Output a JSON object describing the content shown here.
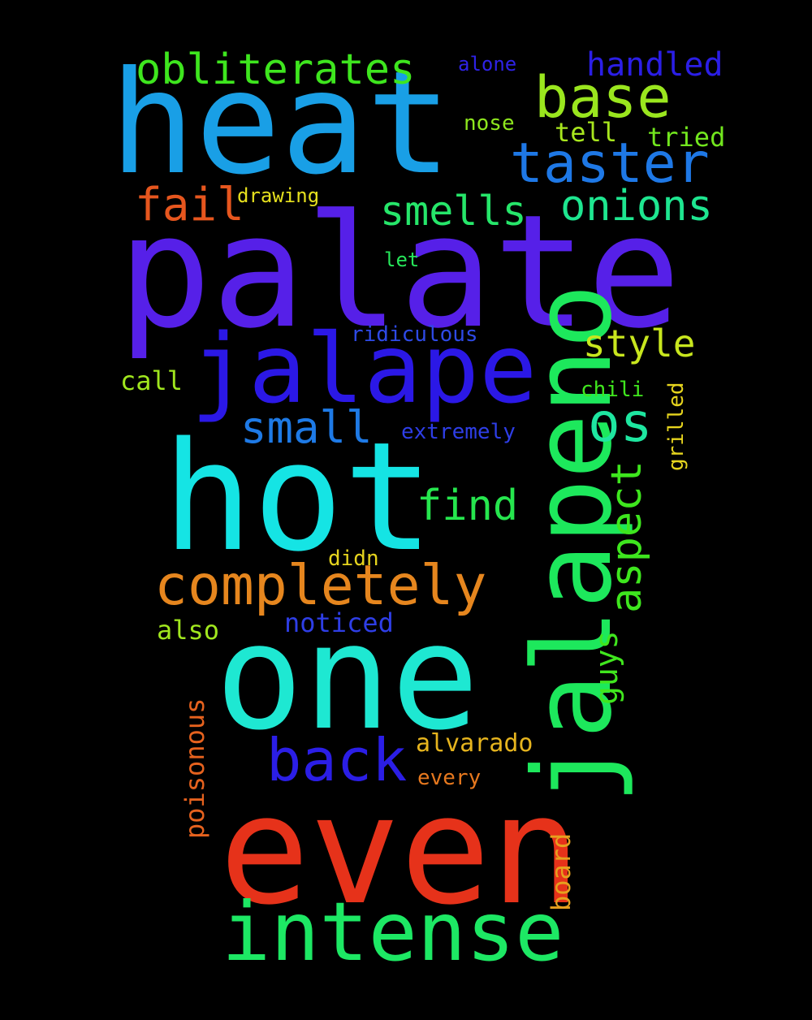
{
  "background": "#000000",
  "words": [
    {
      "name": "palate",
      "text": "palate",
      "color": "#5620e8"
    },
    {
      "name": "heat",
      "text": "heat",
      "color": "#199fe6"
    },
    {
      "name": "hot",
      "text": "hot",
      "color": "#15e4e4"
    },
    {
      "name": "one",
      "text": "one",
      "color": "#1ee8d2"
    },
    {
      "name": "even",
      "text": "even",
      "color": "#e6321a"
    },
    {
      "name": "jalapeno",
      "text": "jalapeno",
      "color": "#1de85c"
    },
    {
      "name": "jalape",
      "text": "jalape",
      "color": "#2b18e6"
    },
    {
      "name": "intense",
      "text": "intense",
      "color": "#1de864"
    },
    {
      "name": "completely",
      "text": "completely",
      "color": "#e6861e"
    },
    {
      "name": "taster",
      "text": "taster",
      "color": "#1e78e6"
    },
    {
      "name": "base",
      "text": "base",
      "color": "#9ae61e"
    },
    {
      "name": "back",
      "text": "back",
      "color": "#2b1ee6"
    },
    {
      "name": "obliterates",
      "text": "obliterates",
      "color": "#3ee61e"
    },
    {
      "name": "aspect",
      "text": "aspect",
      "color": "#3ee61e"
    },
    {
      "name": "onions",
      "text": "onions",
      "color": "#1ee690"
    },
    {
      "name": "smells",
      "text": "smells",
      "color": "#26e66a"
    },
    {
      "name": "fail",
      "text": "fail",
      "color": "#e6561e"
    },
    {
      "name": "find",
      "text": "find",
      "color": "#26e64e"
    },
    {
      "name": "handled",
      "text": "handled",
      "color": "#2b1ee6"
    },
    {
      "name": "style",
      "text": "style",
      "color": "#c8e61e"
    },
    {
      "name": "os",
      "text": "os",
      "color": "#1ee6a0"
    },
    {
      "name": "small",
      "text": "small",
      "color": "#1e7ae6"
    },
    {
      "name": "poisonous",
      "text": "poisonous",
      "color": "#e6621e"
    },
    {
      "name": "guys",
      "text": "guys",
      "color": "#40e61e"
    },
    {
      "name": "alvarado",
      "text": "alvarado",
      "color": "#e6b41e"
    },
    {
      "name": "board",
      "text": "board",
      "color": "#e6a01e"
    },
    {
      "name": "noticed",
      "text": "noticed",
      "color": "#2e3ee6"
    },
    {
      "name": "tried",
      "text": "tried",
      "color": "#72e61e"
    },
    {
      "name": "tell",
      "text": "tell",
      "color": "#a8e61e"
    },
    {
      "name": "call",
      "text": "call",
      "color": "#a0e61e"
    },
    {
      "name": "also",
      "text": "also",
      "color": "#a0e61e"
    },
    {
      "name": "every",
      "text": "every",
      "color": "#e6781e"
    },
    {
      "name": "ridiculous",
      "text": "ridiculous",
      "color": "#2e4ae6"
    },
    {
      "name": "extremely",
      "text": "extremely",
      "color": "#2e3ee6"
    },
    {
      "name": "chili",
      "text": "chili",
      "color": "#40e61e"
    },
    {
      "name": "grilled",
      "text": "grilled",
      "color": "#e6d41e"
    },
    {
      "name": "nose",
      "text": "nose",
      "color": "#8ee61e"
    },
    {
      "name": "alone",
      "text": "alone",
      "color": "#2e22e6"
    },
    {
      "name": "drawing",
      "text": "drawing",
      "color": "#e6e01e"
    },
    {
      "name": "let",
      "text": "let",
      "color": "#26e65a"
    },
    {
      "name": "didn",
      "text": "didn",
      "color": "#e6d41e"
    }
  ]
}
